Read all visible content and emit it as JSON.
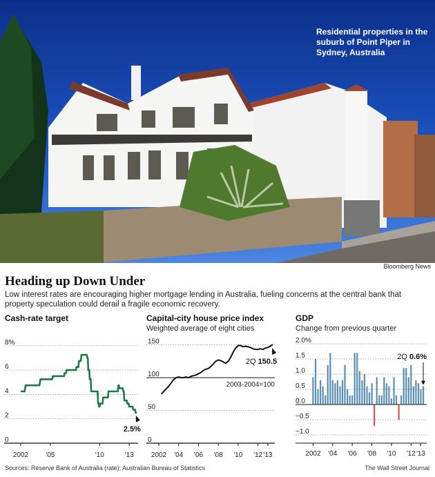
{
  "photo": {
    "caption": "Residential properties in the suburb of Point Piper in Sydney, Australia",
    "credit": "Bloomberg News"
  },
  "headline": "Heading up Down Under",
  "dek": "Low interest rates are encouraging higher mortgage lending in Australia, fueling concerns at the central bank that property speculation could derail a fragile economic recovery.",
  "source": "Sources: Reserve Bank of Australia (rate); Australian Bureau of Statistics",
  "publisher": "The Wall Street Journal",
  "colors": {
    "green": "#1a7a45",
    "blue": "#5a8fb5",
    "red": "#d9534f",
    "ink": "#111111",
    "grid": "#888888"
  },
  "chart_data": [
    {
      "type": "line",
      "title": "Cash-rate target",
      "subtitle": "",
      "color": "#1a7a45",
      "x": [
        2002.0,
        2002.4,
        2002.5,
        2003.9,
        2004.0,
        2005.2,
        2005.25,
        2006.4,
        2006.45,
        2006.6,
        2006.65,
        2007.6,
        2007.65,
        2007.85,
        2007.9,
        2008.1,
        2008.15,
        2008.7,
        2008.75,
        2008.8,
        2008.85,
        2008.95,
        2009.0,
        2009.1,
        2009.15,
        2009.8,
        2009.85,
        2009.9,
        2009.95,
        2010.0,
        2010.05,
        2010.3,
        2010.35,
        2010.85,
        2010.9,
        2011.85,
        2011.9,
        2011.95,
        2012.0,
        2012.35,
        2012.4,
        2012.45,
        2012.5,
        2012.75,
        2012.8,
        2012.95,
        2013.0,
        2013.35,
        2013.4,
        2013.6,
        2013.65,
        2013.75
      ],
      "values": [
        4.25,
        4.25,
        4.75,
        4.75,
        5.25,
        5.25,
        5.5,
        5.5,
        5.75,
        5.75,
        6.0,
        6.0,
        6.25,
        6.25,
        6.75,
        6.75,
        7.25,
        7.25,
        7.0,
        7.0,
        6.0,
        6.0,
        5.25,
        5.25,
        4.25,
        4.25,
        3.25,
        3.25,
        3.0,
        3.0,
        3.25,
        3.25,
        3.75,
        3.75,
        4.25,
        4.25,
        4.75,
        4.75,
        4.5,
        4.5,
        4.25,
        4.25,
        3.5,
        3.5,
        3.25,
        3.25,
        3.0,
        3.0,
        2.75,
        2.75,
        2.5,
        2.5
      ],
      "y_ticks": [
        "8%",
        "6",
        "4",
        "2",
        "0"
      ],
      "y_tick_values": [
        8,
        6,
        4,
        2,
        0
      ],
      "ylim": [
        0,
        8.5
      ],
      "x_ticks": [
        "2002",
        "'05",
        "'10",
        "'13"
      ],
      "x_tick_values": [
        2002,
        2005,
        2010,
        2013
      ],
      "xlim": [
        2002,
        2013.9
      ],
      "end_label": "2.5%"
    },
    {
      "type": "line",
      "title": "Capital-city house price index",
      "subtitle": "Weighted average of eight cities",
      "color": "#111111",
      "x": [
        2002.25,
        2002.5,
        2002.75,
        2003.0,
        2003.25,
        2003.5,
        2003.75,
        2004.0,
        2004.25,
        2004.5,
        2004.75,
        2005.0,
        2005.25,
        2005.5,
        2005.75,
        2006.0,
        2006.25,
        2006.5,
        2006.75,
        2007.0,
        2007.25,
        2007.5,
        2007.75,
        2008.0,
        2008.25,
        2008.5,
        2008.75,
        2009.0,
        2009.25,
        2009.5,
        2009.75,
        2010.0,
        2010.25,
        2010.5,
        2010.75,
        2011.0,
        2011.25,
        2011.5,
        2011.75,
        2012.0,
        2012.25,
        2012.5,
        2012.75,
        2013.0,
        2013.25,
        2013.5
      ],
      "values": [
        75,
        79,
        83,
        87,
        92,
        97,
        100,
        101,
        100,
        100,
        101,
        100,
        102,
        103,
        104,
        106,
        108,
        111,
        113,
        114,
        117,
        121,
        125,
        127,
        126,
        124,
        122,
        125,
        131,
        139,
        145,
        149,
        149,
        147,
        148,
        147,
        146,
        144,
        143,
        143,
        144,
        143,
        145,
        146,
        148,
        150.5
      ],
      "y_ticks": [
        "150",
        "100",
        "50",
        "0"
      ],
      "y_tick_values": [
        150,
        100,
        50,
        0
      ],
      "ylim": [
        0,
        158
      ],
      "reference": {
        "value": 100,
        "label": "2003-2004=100"
      },
      "x_ticks": [
        "2002",
        "'04",
        "'06",
        "'08",
        "'10",
        "'12",
        "'13"
      ],
      "x_tick_values": [
        2002,
        2004,
        2006,
        2008,
        2010,
        2012,
        2013
      ],
      "xlim": [
        2002,
        2013.7
      ],
      "end_label": {
        "quarter": "2Q",
        "value": "150.5"
      }
    },
    {
      "type": "bar",
      "title": "GDP",
      "subtitle": "Change from previous quarter",
      "color_positive": "#5a8fb5",
      "color_negative": "#d9534f",
      "x": [
        2002.0,
        2002.25,
        2002.5,
        2002.75,
        2003.0,
        2003.25,
        2003.5,
        2003.75,
        2004.0,
        2004.25,
        2004.5,
        2004.75,
        2005.0,
        2005.25,
        2005.5,
        2005.75,
        2006.0,
        2006.25,
        2006.5,
        2006.75,
        2007.0,
        2007.25,
        2007.5,
        2007.75,
        2008.0,
        2008.25,
        2008.5,
        2008.75,
        2009.0,
        2009.25,
        2009.5,
        2009.75,
        2010.0,
        2010.25,
        2010.5,
        2010.75,
        2011.0,
        2011.25,
        2011.5,
        2011.75,
        2012.0,
        2012.25,
        2012.5,
        2012.75,
        2013.0,
        2013.25
      ],
      "values": [
        0.9,
        1.5,
        0.5,
        0.8,
        0.6,
        0.3,
        1.3,
        1.7,
        0.8,
        0.7,
        0.8,
        0.6,
        0.8,
        1.3,
        0.5,
        0.3,
        0.3,
        1.7,
        1.7,
        1.1,
        0.8,
        1.0,
        0.6,
        0.4,
        0.7,
        -0.7,
        0.9,
        0.3,
        0.3,
        0.9,
        0.7,
        0.6,
        0.2,
        0.9,
        0.3,
        -0.5,
        0.3,
        1.2,
        1.2,
        0.9,
        1.3,
        0.6,
        0.8,
        0.7,
        0.5,
        0.6
      ],
      "y_ticks": [
        "2.0%",
        "1.5",
        "1.0",
        "0.5",
        "0.0",
        "−0.5",
        "−1.0"
      ],
      "y_tick_values": [
        2.0,
        1.5,
        1.0,
        0.5,
        0.0,
        -0.5,
        -1.0
      ],
      "ylim": [
        -1.0,
        2.0
      ],
      "x_ticks": [
        "2002",
        "'04",
        "'06",
        "'08",
        "'10",
        "'12",
        "'13"
      ],
      "x_tick_values": [
        2002,
        2004,
        2006,
        2008,
        2010,
        2012,
        2013
      ],
      "xlim": [
        2001.9,
        2013.6
      ],
      "end_label": {
        "quarter": "2Q",
        "value": "0.6%"
      }
    }
  ]
}
